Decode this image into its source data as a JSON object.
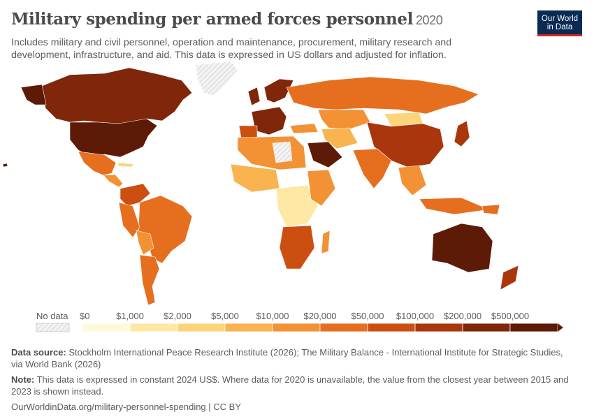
{
  "title": "Military spending per armed forces personnel",
  "year": "2020",
  "subtitle": "Includes military and civil personnel, operation and maintenance, procurement, military research and development, infrastructure, and aid. This data is expressed in US dollars and adjusted for inflation.",
  "logo": {
    "line1": "Our World",
    "line2": "in Data"
  },
  "legend": {
    "no_data": "No data",
    "bins": [
      {
        "label": "$0",
        "color": "#fef9d9"
      },
      {
        "label": "$1,000",
        "color": "#fde9a5"
      },
      {
        "label": "$2,000",
        "color": "#fcd47b"
      },
      {
        "label": "$5,000",
        "color": "#f9b44f"
      },
      {
        "label": "$10,000",
        "color": "#f39135"
      },
      {
        "label": "$20,000",
        "color": "#e56f1f"
      },
      {
        "label": "$50,000",
        "color": "#cc4f11"
      },
      {
        "label": "$100,000",
        "color": "#a9360c"
      },
      {
        "label": "$200,000",
        "color": "#7f260b"
      },
      {
        "label": "$500,000",
        "color": "#5c1a07"
      }
    ]
  },
  "footer": {
    "source_label": "Data source:",
    "source_text": "Stockholm International Peace Research Institute (2026); The Military Balance - International Institute for Strategic Studies, via World Bank (2026)",
    "note_label": "Note:",
    "note_text": "This data is expressed in constant 2024 US$. Where data for 2020 is unavailable, the value from the closest year between 2015 and 2023 is shown instead.",
    "url": "OurWorldinData.org/military-personnel-spending | CC BY"
  }
}
